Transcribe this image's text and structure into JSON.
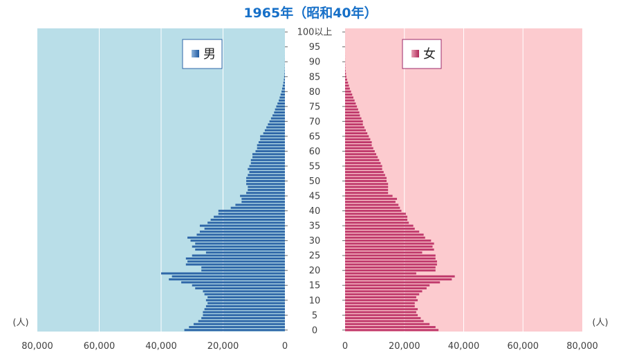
{
  "chart_data": {
    "type": "bar",
    "title": "1965年（昭和40年）",
    "unit_label": "(人)",
    "age_tick_labels": [
      "0",
      "5",
      "10",
      "15",
      "20",
      "25",
      "30",
      "35",
      "40",
      "45",
      "50",
      "55",
      "60",
      "65",
      "70",
      "75",
      "80",
      "85",
      "90",
      "95",
      "100以上"
    ],
    "age_tick_values": [
      0,
      5,
      10,
      15,
      20,
      25,
      30,
      35,
      40,
      45,
      50,
      55,
      60,
      65,
      70,
      75,
      80,
      85,
      90,
      95,
      100
    ],
    "x_tick_values": [
      0,
      20000,
      40000,
      60000,
      80000
    ],
    "x_tick_labels": [
      "0",
      "20,000",
      "40,000",
      "60,000",
      "80,000"
    ],
    "xlim": [
      0,
      80000
    ],
    "ages": [
      0,
      1,
      2,
      3,
      4,
      5,
      6,
      7,
      8,
      9,
      10,
      11,
      12,
      13,
      14,
      15,
      16,
      17,
      18,
      19,
      20,
      21,
      22,
      23,
      24,
      25,
      26,
      27,
      28,
      29,
      30,
      31,
      32,
      33,
      34,
      35,
      36,
      37,
      38,
      39,
      40,
      41,
      42,
      43,
      44,
      45,
      46,
      47,
      48,
      49,
      50,
      51,
      52,
      53,
      54,
      55,
      56,
      57,
      58,
      59,
      60,
      61,
      62,
      63,
      64,
      65,
      66,
      67,
      68,
      69,
      70,
      71,
      72,
      73,
      74,
      75,
      76,
      77,
      78,
      79,
      80,
      81,
      82,
      83,
      84,
      85,
      86,
      87,
      88,
      89,
      90,
      91,
      92,
      93,
      94,
      95,
      96,
      97,
      98,
      99,
      100
    ],
    "series": [
      {
        "name": "男",
        "side": "left",
        "values": [
          32500,
          31000,
          29500,
          28000,
          27000,
          26500,
          26500,
          26000,
          25500,
          25000,
          25500,
          25000,
          26000,
          26500,
          29000,
          30000,
          33500,
          37500,
          36500,
          40000,
          27000,
          27000,
          32000,
          31500,
          32000,
          30000,
          25500,
          29000,
          30000,
          29000,
          30500,
          31500,
          28500,
          27500,
          26000,
          27500,
          25000,
          24000,
          23000,
          21500,
          21500,
          17500,
          16000,
          14000,
          14000,
          14500,
          12500,
          12000,
          12000,
          12500,
          12500,
          12500,
          12000,
          11500,
          12000,
          11500,
          11000,
          11000,
          10500,
          10500,
          9500,
          9000,
          9000,
          8500,
          8000,
          8000,
          7000,
          6500,
          6000,
          5500,
          5000,
          4500,
          4000,
          3500,
          3200,
          2800,
          2400,
          2000,
          1700,
          1400,
          1100,
          900,
          700,
          500,
          350,
          250,
          150,
          100,
          60,
          40,
          25,
          15,
          10,
          5,
          3,
          2,
          1,
          1,
          0,
          0,
          0
        ]
      },
      {
        "name": "女",
        "side": "right",
        "values": [
          31500,
          30500,
          28500,
          26500,
          25500,
          24500,
          24000,
          24500,
          23500,
          23500,
          24500,
          24000,
          25000,
          26000,
          27500,
          28500,
          32000,
          36000,
          37000,
          24000,
          30500,
          30500,
          31000,
          31000,
          30500,
          30500,
          26000,
          30000,
          29500,
          30000,
          29000,
          27000,
          26500,
          25000,
          23500,
          23000,
          21500,
          21000,
          21000,
          20500,
          19000,
          18500,
          18000,
          17000,
          17500,
          16000,
          14500,
          14500,
          14500,
          14500,
          14000,
          14000,
          13500,
          13000,
          12500,
          12500,
          12000,
          11500,
          11000,
          10500,
          10000,
          9500,
          9000,
          9000,
          8500,
          8000,
          7500,
          7000,
          6500,
          6000,
          6000,
          5500,
          5000,
          4800,
          4400,
          4000,
          3600,
          3200,
          2800,
          2400,
          2000,
          1600,
          1300,
          1000,
          700,
          450,
          300,
          180,
          110,
          70,
          40,
          25,
          15,
          8,
          5,
          3,
          2,
          1,
          1,
          0,
          0
        ]
      }
    ],
    "colors": {
      "title": "#1770c8",
      "male_panel_bg": "#b9dee8",
      "female_panel_bg": "#fccbcf",
      "male_bar": "#2f67a8",
      "female_bar": "#c03a6c",
      "male_legend_border": "#2f67a8",
      "female_legend_border": "#9b2a6a",
      "gridline": "#ffffff"
    }
  }
}
